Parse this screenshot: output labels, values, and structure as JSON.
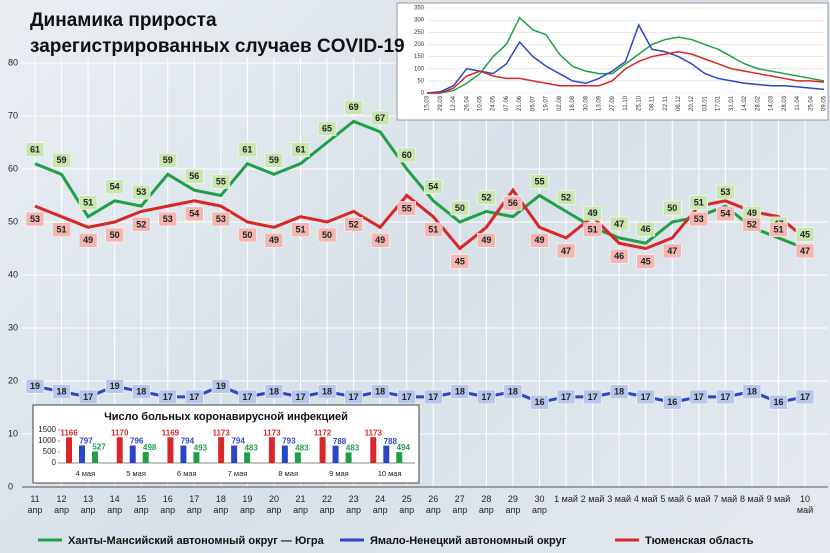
{
  "chart_data": [
    {
      "type": "line",
      "title": "Динамика прироста зарегистрированных случаев COVID-19",
      "categories": [
        "11 апр",
        "12 апр",
        "13 апр",
        "14 апр",
        "15 апр",
        "16 апр",
        "17 апр",
        "18 апр",
        "19 апр",
        "20 апр",
        "21 апр",
        "22 апр",
        "23 апр",
        "24 апр",
        "25 апр",
        "26 апр",
        "27 апр",
        "28 апр",
        "29 апр",
        "30 апр",
        "1 май",
        "2 май",
        "3 май",
        "4 май",
        "5 май",
        "6 май",
        "7 май",
        "8 май",
        "9 май",
        "10 май"
      ],
      "series": [
        {
          "name": "Ханты-Мансийский автономный округ — Югра",
          "color": "#1fa046",
          "values": [
            61,
            59,
            51,
            54,
            53,
            59,
            56,
            55,
            61,
            59,
            61,
            65,
            69,
            67,
            60,
            54,
            50,
            52,
            51,
            55,
            52,
            49,
            47,
            46,
            50,
            51,
            53,
            49,
            47,
            45
          ]
        },
        {
          "name": "Ямало-Ненецкий автономный округ",
          "color": "#2c46c8",
          "values": [
            19,
            18,
            17,
            19,
            18,
            17,
            17,
            19,
            17,
            18,
            17,
            18,
            17,
            18,
            17,
            17,
            18,
            17,
            18,
            16,
            17,
            17,
            18,
            17,
            16,
            17,
            17,
            18,
            16,
            17
          ]
        },
        {
          "name": "Тюменская область",
          "color": "#d92626",
          "values": [
            53,
            51,
            49,
            50,
            52,
            53,
            54,
            53,
            50,
            49,
            51,
            50,
            52,
            49,
            55,
            51,
            45,
            49,
            56,
            49,
            47,
            51,
            46,
            45,
            47,
            53,
            54,
            52,
            51,
            47
          ]
        }
      ],
      "ylim": [
        0,
        80
      ],
      "yticks": [
        0,
        10,
        20,
        30,
        40,
        50,
        60,
        70,
        80
      ],
      "grid": true
    },
    {
      "type": "line",
      "categories": [
        "15.03",
        "29.03",
        "12.04",
        "26.04",
        "10.05",
        "24.05",
        "07.06",
        "21.06",
        "05.07",
        "19.07",
        "02.08",
        "16.08",
        "30.08",
        "13.09",
        "27.09",
        "11.10",
        "25.10",
        "08.11",
        "22.11",
        "06.12",
        "20.12",
        "03.01",
        "17.01",
        "31.01",
        "14.02",
        "28.02",
        "14.03",
        "28.03",
        "11.04",
        "25.04",
        "09.05"
      ],
      "series": [
        {
          "color": "#1fa046",
          "values": [
            0,
            0,
            10,
            40,
            80,
            150,
            200,
            310,
            260,
            240,
            160,
            110,
            90,
            80,
            80,
            120,
            160,
            200,
            220,
            230,
            220,
            200,
            180,
            150,
            120,
            100,
            90,
            80,
            70,
            60,
            50
          ]
        },
        {
          "color": "#2c46c8",
          "values": [
            0,
            5,
            30,
            100,
            90,
            80,
            120,
            210,
            150,
            110,
            80,
            50,
            40,
            60,
            90,
            130,
            280,
            180,
            170,
            150,
            120,
            80,
            60,
            50,
            40,
            35,
            30,
            30,
            25,
            20,
            15
          ]
        },
        {
          "color": "#d92626",
          "values": [
            0,
            0,
            20,
            70,
            90,
            70,
            60,
            60,
            50,
            40,
            30,
            30,
            30,
            30,
            50,
            100,
            130,
            150,
            160,
            170,
            160,
            140,
            120,
            100,
            90,
            80,
            70,
            60,
            50,
            50,
            45
          ]
        }
      ],
      "ylim": [
        0,
        350
      ],
      "yticks": [
        0,
        50,
        100,
        150,
        200,
        250,
        300,
        350
      ],
      "grid": true
    },
    {
      "type": "bar",
      "title": "Число больных коронавирусной инфекцией",
      "categories": [
        "4 мая",
        "5 мая",
        "6 мая",
        "7 мая",
        "8 мая",
        "9 мая",
        "10 мая"
      ],
      "series": [
        {
          "color": "#d92626",
          "values": [
            1166,
            1170,
            1169,
            1173,
            1173,
            1172,
            1173
          ]
        },
        {
          "color": "#2c46c8",
          "values": [
            797,
            796,
            794,
            794,
            793,
            788,
            788
          ]
        },
        {
          "color": "#1fa046",
          "values": [
            527,
            498,
            493,
            483,
            483,
            483,
            494
          ]
        }
      ],
      "ylim": [
        0,
        1500
      ],
      "yticks": [
        0,
        500,
        1000,
        1500
      ]
    }
  ]
}
